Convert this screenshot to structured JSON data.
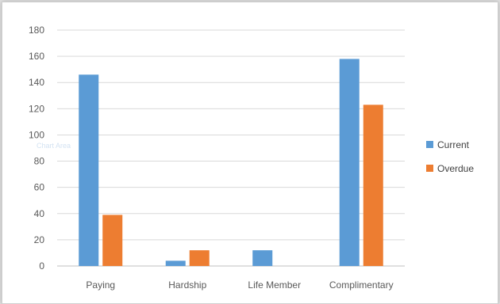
{
  "chart_data": {
    "type": "bar",
    "categories": [
      "Paying",
      "Hardship",
      "Life Member",
      "Complimentary"
    ],
    "series": [
      {
        "name": "Current",
        "values": [
          146,
          4,
          12,
          158
        ],
        "color": "#5b9bd5"
      },
      {
        "name": "Overdue",
        "values": [
          39,
          12,
          0,
          123
        ],
        "color": "#ed7d31"
      }
    ],
    "y_ticks": [
      0,
      20,
      40,
      60,
      80,
      100,
      120,
      140,
      160,
      180
    ],
    "ylim": [
      0,
      180
    ],
    "grid": true,
    "legend_position": "right"
  },
  "overlay_text": "Chart Area"
}
